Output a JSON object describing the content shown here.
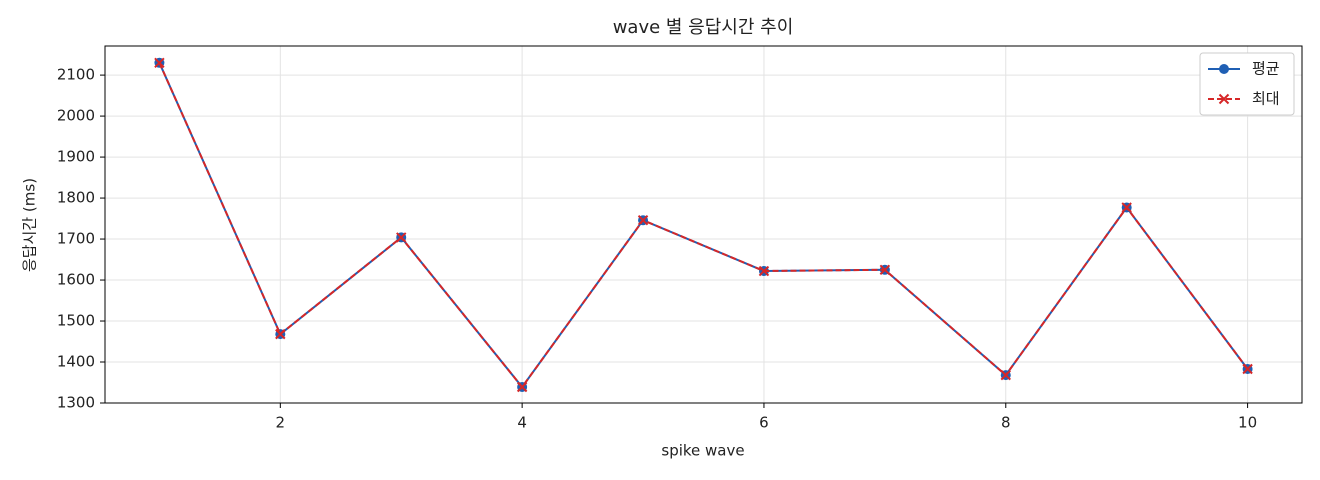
{
  "chart_data": {
    "type": "line",
    "title": "wave 별 응답시간 추이",
    "x_label": "spike wave",
    "y_label": "응답시간 (ms)",
    "x": [
      1,
      2,
      3,
      4,
      5,
      6,
      7,
      8,
      9,
      10
    ],
    "series": [
      {
        "name": "평균",
        "color": "#1f5fb4",
        "marker": "circle",
        "linestyle": "solid",
        "values": [
          2130,
          1468,
          1704,
          1339,
          1746,
          1622,
          1625,
          1368,
          1777,
          1383
        ]
      },
      {
        "name": "최대",
        "color": "#d62728",
        "marker": "x",
        "linestyle": "dashed",
        "values": [
          2130,
          1468,
          1704,
          1339,
          1746,
          1622,
          1625,
          1368,
          1777,
          1383
        ]
      }
    ],
    "xlim": [
      0.55,
      10.45
    ],
    "xticks": [
      2,
      4,
      6,
      8,
      10
    ],
    "ylim": [
      1300,
      2171
    ],
    "yticks": [
      1300,
      1400,
      1500,
      1600,
      1700,
      1800,
      1900,
      2000,
      2100
    ],
    "grid": true,
    "legend": "upper right"
  }
}
